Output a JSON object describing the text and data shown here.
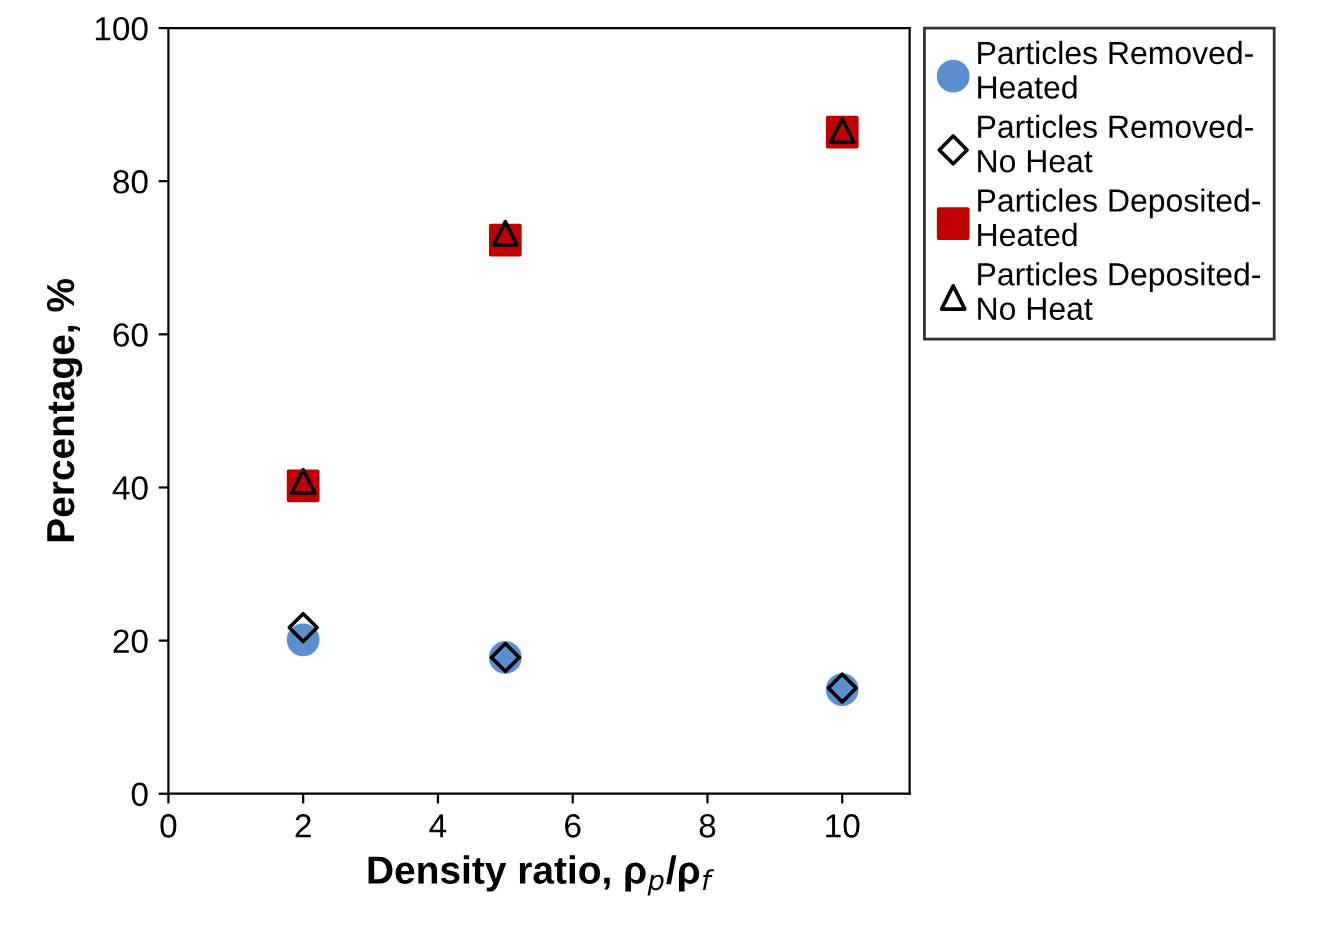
{
  "chart_data": {
    "type": "scatter",
    "xlabel": "Density ratio, ρ$_{p}$/ρ$_{f}$",
    "ylabel": "Percentage, %",
    "x": [
      2,
      5,
      10
    ],
    "series": [
      {
        "name": "Particles Removed-\nHeated",
        "color": "#5b8fd0",
        "marker": "circle",
        "values": [
          20.1,
          17.8,
          13.6
        ]
      },
      {
        "name": "Particles Removed-\nNo Heat",
        "color": "#000000",
        "marker": "diamond",
        "values": [
          21.7,
          17.8,
          13.8
        ]
      },
      {
        "name": "Particles Deposited-\nHeated",
        "color": "#c00000",
        "marker": "square",
        "values": [
          40.2,
          72.3,
          86.4
        ]
      },
      {
        "name": "Particles Deposited-\nNo Heat",
        "color": "#000000",
        "marker": "triangle",
        "values": [
          40.8,
          73.2,
          86.6
        ]
      }
    ],
    "xlim": [
      0,
      11
    ],
    "xticks": [
      0,
      2,
      4,
      6,
      8,
      10
    ],
    "ylim": [
      0,
      100
    ],
    "yticks": [
      0,
      20,
      40,
      60,
      80,
      100
    ],
    "grid": false,
    "legend": "right"
  }
}
